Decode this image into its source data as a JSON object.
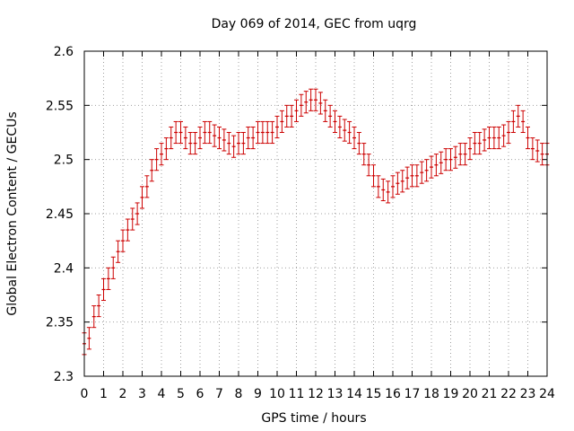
{
  "chart_data": {
    "type": "line",
    "title": "Day 069 of 2014, GEC from uqrg",
    "xlabel": "GPS time / hours",
    "ylabel": "Global Electron Content / GECUs",
    "xlim": [
      0,
      24
    ],
    "ylim": [
      2.3,
      2.6
    ],
    "xticks": [
      "0",
      "1",
      "2",
      "3",
      "4",
      "5",
      "6",
      "7",
      "8",
      "9",
      "10",
      "11",
      "12",
      "13",
      "14",
      "15",
      "16",
      "17",
      "18",
      "19",
      "20",
      "21",
      "22",
      "23",
      "24"
    ],
    "yticks": [
      "2.3",
      "2.35",
      "2.4",
      "2.45",
      "2.5",
      "2.55",
      "2.6"
    ],
    "grid": true,
    "colors": {
      "series": "#cc0000",
      "grid": "#a0a0a0",
      "axes": "#000000"
    },
    "series": [
      {
        "x": [
          0,
          0.25,
          0.5,
          0.75,
          1,
          1.25,
          1.5,
          1.75,
          2,
          2.25,
          2.5,
          2.75,
          3,
          3.25,
          3.5,
          3.75,
          4,
          4.25,
          4.5,
          4.75,
          5,
          5.25,
          5.5,
          5.75,
          6,
          6.25,
          6.5,
          6.75,
          7,
          7.25,
          7.5,
          7.75,
          8,
          8.25,
          8.5,
          8.75,
          9,
          9.25,
          9.5,
          9.75,
          10,
          10.25,
          10.5,
          10.75,
          11,
          11.25,
          11.5,
          11.75,
          12,
          12.25,
          12.5,
          12.75,
          13,
          13.25,
          13.5,
          13.75,
          14,
          14.25,
          14.5,
          14.75,
          15,
          15.25,
          15.5,
          15.75,
          16,
          16.25,
          16.5,
          16.75,
          17,
          17.25,
          17.5,
          17.75,
          18,
          18.25,
          18.5,
          18.75,
          19,
          19.25,
          19.5,
          19.75,
          20,
          20.25,
          20.5,
          20.75,
          21,
          21.25,
          21.5,
          21.75,
          22,
          22.25,
          22.5,
          22.75,
          23,
          23.25,
          23.5,
          23.75,
          24
        ],
        "y": [
          2.33,
          2.335,
          2.355,
          2.365,
          2.38,
          2.39,
          2.4,
          2.415,
          2.425,
          2.435,
          2.445,
          2.45,
          2.465,
          2.475,
          2.49,
          2.5,
          2.505,
          2.51,
          2.52,
          2.525,
          2.525,
          2.52,
          2.515,
          2.515,
          2.52,
          2.525,
          2.525,
          2.522,
          2.52,
          2.518,
          2.515,
          2.512,
          2.515,
          2.515,
          2.52,
          2.52,
          2.525,
          2.525,
          2.525,
          2.525,
          2.53,
          2.535,
          2.54,
          2.54,
          2.545,
          2.55,
          2.553,
          2.555,
          2.555,
          2.552,
          2.545,
          2.54,
          2.535,
          2.53,
          2.527,
          2.525,
          2.52,
          2.515,
          2.505,
          2.495,
          2.485,
          2.475,
          2.472,
          2.47,
          2.475,
          2.478,
          2.48,
          2.483,
          2.485,
          2.485,
          2.488,
          2.49,
          2.493,
          2.495,
          2.497,
          2.5,
          2.5,
          2.502,
          2.505,
          2.505,
          2.51,
          2.515,
          2.515,
          2.518,
          2.52,
          2.52,
          2.52,
          2.522,
          2.525,
          2.535,
          2.54,
          2.535,
          2.52,
          2.51,
          2.508,
          2.505,
          2.505
        ],
        "error": 0.01
      }
    ]
  }
}
